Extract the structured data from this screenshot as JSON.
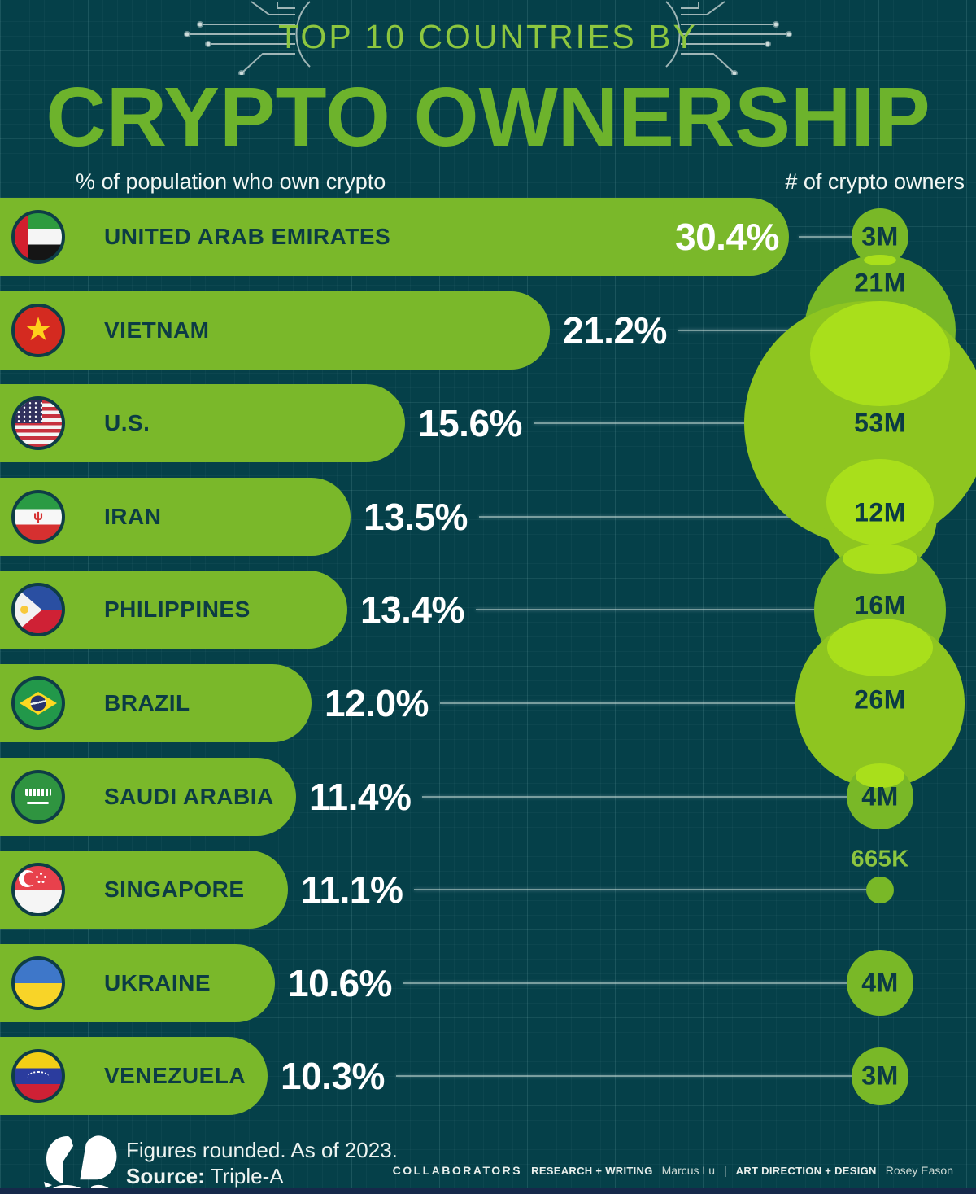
{
  "header": {
    "kicker": "TOP 10 COUNTRIES BY",
    "title": "CRYPTO OWNERSHIP",
    "left_column_label": "% of population who own crypto",
    "right_column_label": "# of crypto owners"
  },
  "colors": {
    "background": "#054049",
    "bar_green": "#7ab82a",
    "bubble_dark_green": "#79b827",
    "bubble_light_green": "#8ec520",
    "bubble_overlap_green": "#a9df1b",
    "accent_green": "#8dc63f",
    "title_green": "#6db32c",
    "dark_text": "#0c3c44",
    "white_text": "#ffffff"
  },
  "chart_data": {
    "type": "bar",
    "title": "Top 10 Countries by Crypto Ownership",
    "xlabel": "% of population who own crypto",
    "ylabel_right": "# of crypto owners",
    "xlim": [
      0,
      33
    ],
    "rows": [
      {
        "country": "United Arab Emirates",
        "label": "UNITED ARAB EMIRATES",
        "flag": "uae",
        "percent": 30.4,
        "percent_label": "30.4%",
        "percent_inside": true,
        "owners_label": "3M",
        "owners_millions": 3,
        "bubble_shade": "dark",
        "bubble_label_dy": 0
      },
      {
        "country": "Vietnam",
        "label": "VIETNAM",
        "flag": "vietnam",
        "percent": 21.2,
        "percent_label": "21.2%",
        "percent_inside": false,
        "owners_label": "21M",
        "owners_millions": 21,
        "bubble_shade": "dark",
        "bubble_label_dy": -58
      },
      {
        "country": "United States",
        "label": "U.S.",
        "flag": "us",
        "percent": 15.6,
        "percent_label": "15.6%",
        "percent_inside": false,
        "owners_label": "53M",
        "owners_millions": 53,
        "bubble_shade": "light",
        "bubble_label_dy": 0
      },
      {
        "country": "Iran",
        "label": "IRAN",
        "flag": "iran",
        "percent": 13.5,
        "percent_label": "13.5%",
        "percent_inside": false,
        "owners_label": "12M",
        "owners_millions": 12,
        "bubble_shade": "light",
        "bubble_label_dy": -5
      },
      {
        "country": "Philippines",
        "label": "PHILIPPINES",
        "flag": "philippines",
        "percent": 13.4,
        "percent_label": "13.4%",
        "percent_inside": false,
        "owners_label": "16M",
        "owners_millions": 16,
        "bubble_shade": "dark",
        "bubble_label_dy": -5
      },
      {
        "country": "Brazil",
        "label": "BRAZIL",
        "flag": "brazil",
        "percent": 12.0,
        "percent_label": "12.0%",
        "percent_inside": false,
        "owners_label": "26M",
        "owners_millions": 26,
        "bubble_shade": "light",
        "bubble_label_dy": -4
      },
      {
        "country": "Saudi Arabia",
        "label": "SAUDI ARABIA",
        "flag": "saudi",
        "percent": 11.4,
        "percent_label": "11.4%",
        "percent_inside": false,
        "owners_label": "4M",
        "owners_millions": 4,
        "bubble_shade": "dark",
        "bubble_label_dy": 0
      },
      {
        "country": "Singapore",
        "label": "SINGAPORE",
        "flag": "singapore",
        "percent": 11.1,
        "percent_label": "11.1%",
        "percent_inside": false,
        "owners_label": "665K",
        "owners_millions": 0.665,
        "bubble_shade": "dark",
        "bubble_label_outside": true,
        "bubble_label_dy": -37
      },
      {
        "country": "Ukraine",
        "label": "UKRAINE",
        "flag": "ukraine",
        "percent": 10.6,
        "percent_label": "10.6%",
        "percent_inside": false,
        "owners_label": "4M",
        "owners_millions": 4,
        "bubble_shade": "dark",
        "bubble_label_dy": 0
      },
      {
        "country": "Venezuela",
        "label": "VENEZUELA",
        "flag": "venezuela",
        "percent": 10.3,
        "percent_label": "10.3%",
        "percent_inside": false,
        "owners_label": "3M",
        "owners_millions": 3,
        "bubble_shade": "dark",
        "bubble_label_dy": 0
      }
    ]
  },
  "footer": {
    "note": "Figures rounded. As of 2023.",
    "source_label": "Source:",
    "source_value": "Triple-A",
    "collaborators_label": "COLLABORATORS",
    "credit1_role": "RESEARCH + WRITING",
    "credit1_name": "Marcus Lu",
    "separator": "|",
    "credit2_role": "ART DIRECTION + DESIGN",
    "credit2_name": "Rosey Eason"
  }
}
